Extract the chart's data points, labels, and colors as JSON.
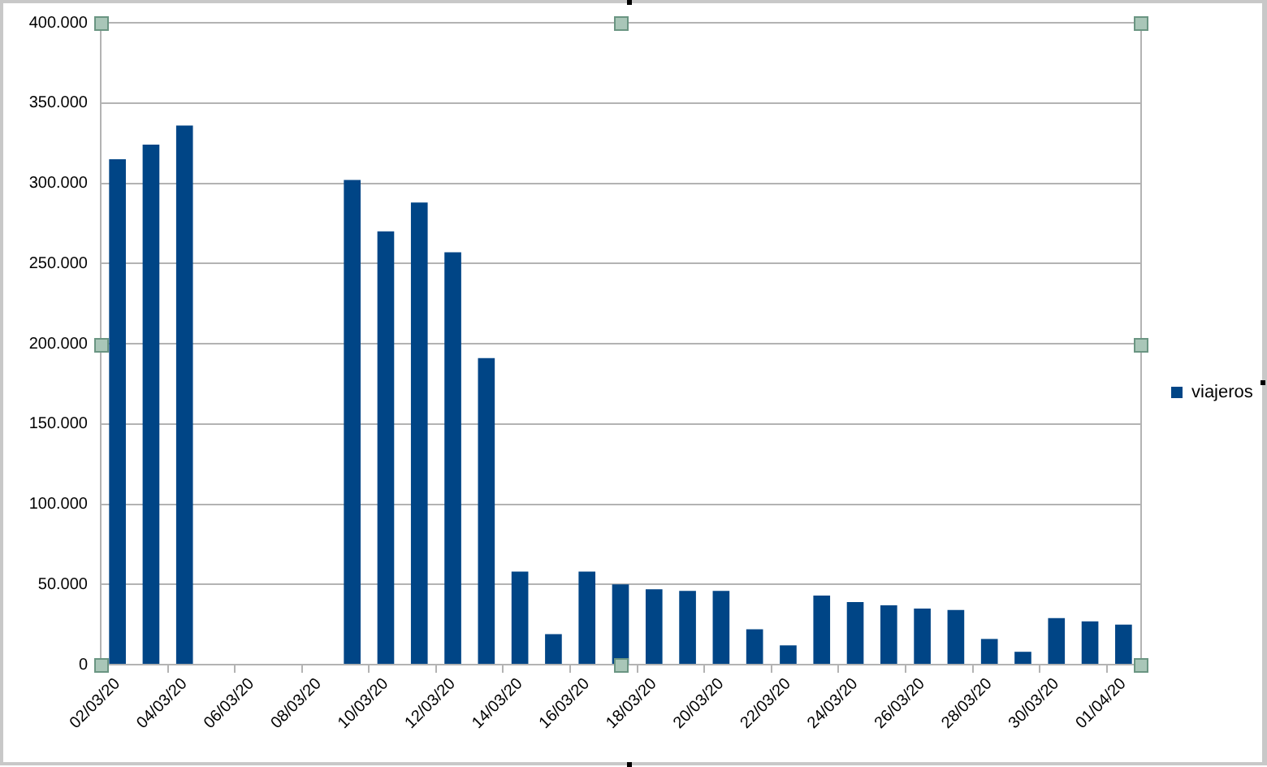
{
  "chart_data": {
    "type": "bar",
    "categories": [
      "02/03/20",
      null,
      "04/03/20",
      null,
      "06/03/20",
      null,
      "08/03/20",
      null,
      "10/03/20",
      null,
      "12/03/20",
      null,
      "14/03/20",
      null,
      "16/03/20",
      null,
      "18/03/20",
      null,
      "20/03/20",
      null,
      "22/03/20",
      null,
      "24/03/20",
      null,
      "26/03/20",
      null,
      "28/03/20",
      null,
      "30/03/20",
      null,
      "01/04/20"
    ],
    "series": [
      {
        "name": "viajeros",
        "color": "#004586",
        "values": [
          315000,
          324000,
          336000,
          null,
          null,
          null,
          null,
          302000,
          270000,
          288000,
          257000,
          191000,
          58000,
          19000,
          58000,
          50000,
          47000,
          46000,
          46000,
          22000,
          12000,
          43000,
          39000,
          37000,
          35000,
          34000,
          16000,
          8000,
          29000,
          27000,
          25000
        ]
      }
    ],
    "ylim": [
      0,
      400000
    ],
    "yticks": [
      0,
      {
        "value": 50000,
        "label": "50.000"
      },
      {
        "value": 100000,
        "label": "100.000"
      },
      {
        "value": 150000,
        "label": "150.000"
      },
      {
        "value": 200000,
        "label": "200.000"
      },
      {
        "value": 250000,
        "label": "250.000"
      },
      {
        "value": 300000,
        "label": "300.000"
      },
      {
        "value": 350000,
        "label": "350.000"
      },
      {
        "value": 400000,
        "label": "400.000"
      }
    ],
    "grid": "y",
    "legend": "right"
  }
}
